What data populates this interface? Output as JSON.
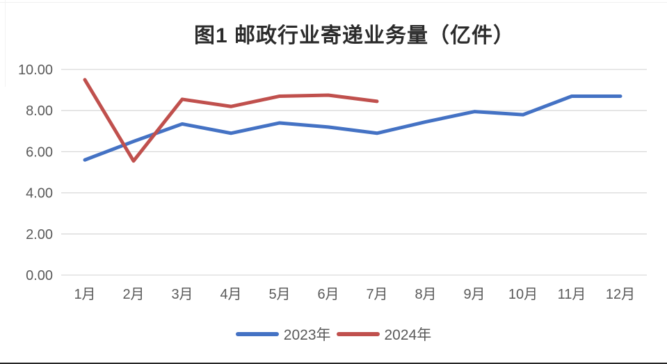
{
  "page": {
    "background_color": "#ffffff",
    "border_bottom_color": "#262626"
  },
  "chart_data": {
    "type": "line",
    "title": "图1 邮政行业寄递业务量（亿件）",
    "categories": [
      "1月",
      "2月",
      "3月",
      "4月",
      "5月",
      "6月",
      "7月",
      "8月",
      "9月",
      "10月",
      "11月",
      "12月"
    ],
    "series": [
      {
        "name": "2023年",
        "color": "#4472C4",
        "values": [
          5.6,
          6.5,
          7.35,
          6.9,
          7.4,
          7.2,
          6.9,
          7.45,
          7.95,
          7.8,
          8.7,
          8.7
        ]
      },
      {
        "name": "2024年",
        "color": "#C0504D",
        "values": [
          9.5,
          5.55,
          8.55,
          8.2,
          8.7,
          8.75,
          8.45
        ]
      }
    ],
    "y_axis": {
      "min": 0,
      "max": 10,
      "step": 2,
      "tick_labels": [
        "0.00",
        "2.00",
        "4.00",
        "6.00",
        "8.00",
        "10.00"
      ]
    },
    "x_axis_label": "",
    "y_axis_label": "",
    "grid": true,
    "gridline_color": "#d9d9d9",
    "tick_label_color": "#595959",
    "legend_position": "bottom"
  }
}
